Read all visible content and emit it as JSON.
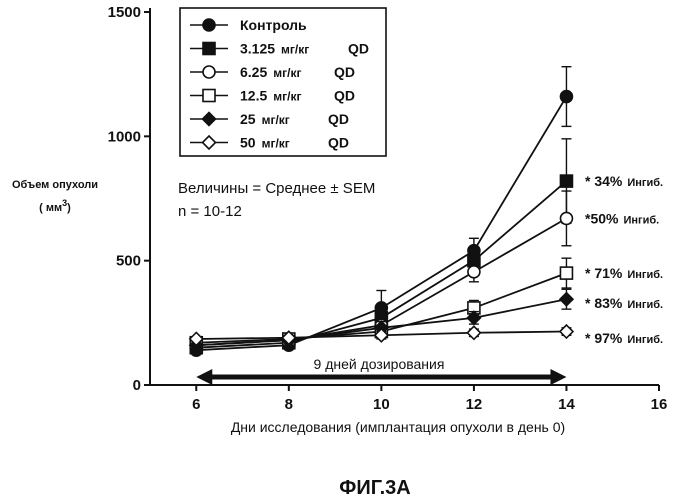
{
  "chart_data": {
    "type": "line",
    "xlabel": "Дни исследования (имплантация опухоли в день 0)",
    "ylabel": "Объем опухоли",
    "ylabel_unit_prefix": "( мм",
    "ylabel_unit_sup": "3",
    "ylabel_unit_suffix": ")",
    "xlim": [
      5,
      16
    ],
    "ylim": [
      0,
      1500
    ],
    "x_ticks": [
      6,
      8,
      10,
      12,
      14,
      16
    ],
    "y_ticks": [
      0,
      500,
      1000,
      1500
    ],
    "legend_position": "top-left",
    "series": [
      {
        "name": "Контроль",
        "dose_unit": "",
        "schedule": "",
        "marker": "circle-filled",
        "x": [
          6,
          8,
          10,
          12,
          14
        ],
        "y": [
          140,
          160,
          310,
          540,
          1160
        ],
        "err": [
          0,
          15,
          70,
          50,
          120
        ]
      },
      {
        "name": "3.125",
        "dose_unit": "мг/кг",
        "schedule": "QD",
        "marker": "square-filled",
        "x": [
          6,
          8,
          10,
          12,
          14
        ],
        "y": [
          150,
          170,
          270,
          500,
          820
        ],
        "err": [
          0,
          15,
          40,
          50,
          170
        ]
      },
      {
        "name": "6.25",
        "dose_unit": "мг/кг",
        "schedule": "QD",
        "marker": "circle-open",
        "x": [
          6,
          8,
          10,
          12,
          14
        ],
        "y": [
          160,
          180,
          240,
          455,
          670
        ],
        "err": [
          0,
          15,
          30,
          40,
          110
        ]
      },
      {
        "name": "12.5",
        "dose_unit": "мг/кг",
        "schedule": "QD",
        "marker": "square-open",
        "x": [
          6,
          8,
          10,
          12,
          14
        ],
        "y": [
          170,
          185,
          215,
          310,
          450
        ],
        "err": [
          0,
          15,
          25,
          30,
          60
        ]
      },
      {
        "name": "25",
        "dose_unit": "мг/кг",
        "schedule": "QD",
        "marker": "diamond-filled",
        "x": [
          6,
          8,
          10,
          12,
          14
        ],
        "y": [
          160,
          180,
          230,
          270,
          345
        ],
        "err": [
          0,
          12,
          25,
          25,
          40
        ]
      },
      {
        "name": "50",
        "dose_unit": "мг/кг",
        "schedule": "QD",
        "marker": "diamond-open",
        "x": [
          6,
          8,
          10,
          12,
          14
        ],
        "y": [
          185,
          190,
          200,
          210,
          215
        ],
        "err": [
          0,
          10,
          15,
          15,
          15
        ]
      }
    ],
    "note_line1": "Величины = Среднее ± SEM",
    "note_line2": "n = 10-12",
    "dosing_period": {
      "from": 6,
      "to": 14,
      "label": "9 дней дозирования"
    },
    "annotations": [
      {
        "pct": "* 34%",
        "word": "Ингиб.",
        "y": 820
      },
      {
        "pct": "*50%",
        "word": "Ингиб.",
        "y": 670
      },
      {
        "pct": "* 71%",
        "word": "Ингиб.",
        "y": 450
      },
      {
        "pct": "* 83%",
        "word": "Ингиб.",
        "y": 330
      },
      {
        "pct": "* 97%",
        "word": "Ингиб.",
        "y": 190
      }
    ]
  },
  "caption": "ФИГ.3А"
}
